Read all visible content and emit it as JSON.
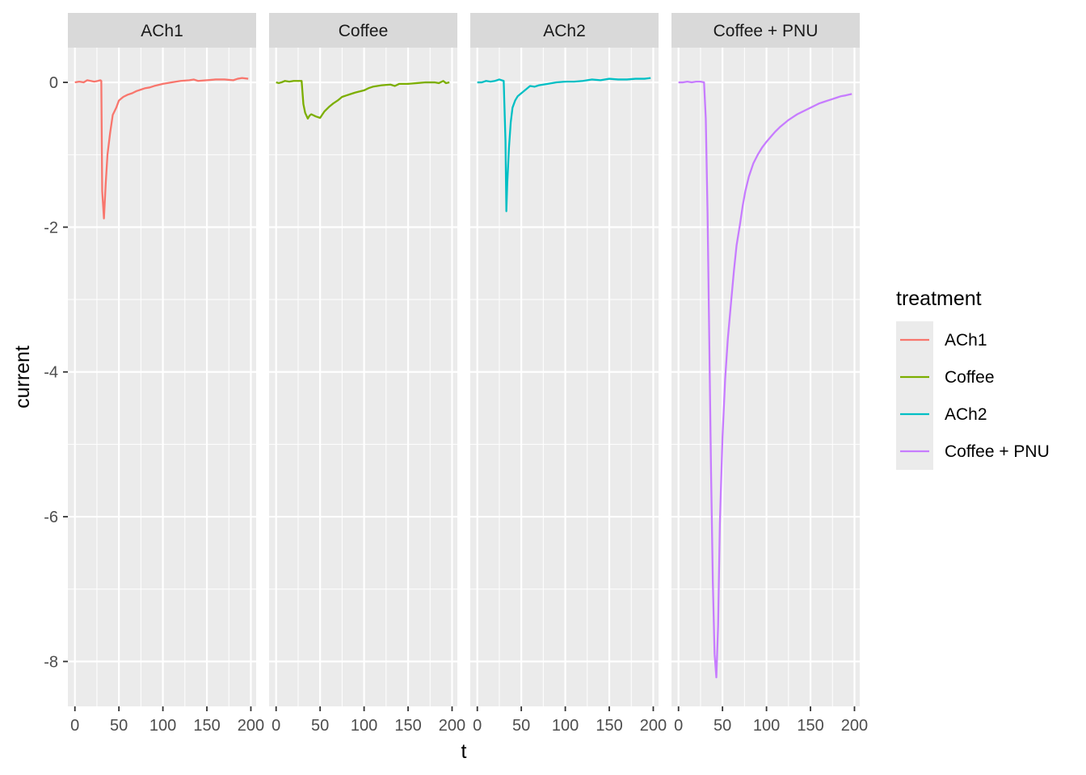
{
  "chart_data": {
    "type": "line",
    "facets": [
      "ACh1",
      "Coffee",
      "ACh2",
      "Coffee + PNU"
    ],
    "xlabel": "t",
    "ylabel": "current",
    "xlim": [
      -8,
      206
    ],
    "ylim": [
      -8.62,
      0.48
    ],
    "x_ticks": [
      0,
      50,
      100,
      150,
      200
    ],
    "x_tick_labels": [
      "0",
      "50",
      "100",
      "150",
      "200"
    ],
    "y_ticks": [
      0,
      -2,
      -4,
      -6,
      -8
    ],
    "y_tick_labels": [
      "0",
      "-2",
      "-4",
      "-6",
      "-8"
    ],
    "grid": true,
    "legend": {
      "title": "treatment",
      "position": "right"
    },
    "series": [
      {
        "name": "ACh1",
        "color": "#F8766D",
        "points": [
          [
            0,
            0
          ],
          [
            5,
            0.01
          ],
          [
            10,
            0
          ],
          [
            14,
            0.03
          ],
          [
            18,
            0.02
          ],
          [
            22,
            0.01
          ],
          [
            26,
            0.02
          ],
          [
            29,
            0.03
          ],
          [
            30,
            0.02
          ],
          [
            31,
            -1.5
          ],
          [
            33,
            -1.88
          ],
          [
            35,
            -1.4
          ],
          [
            37,
            -1.0
          ],
          [
            40,
            -0.7
          ],
          [
            43,
            -0.45
          ],
          [
            47,
            -0.35
          ],
          [
            50,
            -0.25
          ],
          [
            55,
            -0.2
          ],
          [
            60,
            -0.17
          ],
          [
            65,
            -0.15
          ],
          [
            70,
            -0.12
          ],
          [
            75,
            -0.1
          ],
          [
            80,
            -0.08
          ],
          [
            85,
            -0.07
          ],
          [
            90,
            -0.05
          ],
          [
            100,
            -0.02
          ],
          [
            110,
            0
          ],
          [
            120,
            0.02
          ],
          [
            130,
            0.03
          ],
          [
            135,
            0.04
          ],
          [
            140,
            0.02
          ],
          [
            150,
            0.03
          ],
          [
            160,
            0.04
          ],
          [
            170,
            0.04
          ],
          [
            180,
            0.03
          ],
          [
            185,
            0.05
          ],
          [
            190,
            0.06
          ],
          [
            197,
            0.05
          ]
        ]
      },
      {
        "name": "Coffee",
        "color": "#7CAE00",
        "points": [
          [
            0,
            0
          ],
          [
            3,
            -0.01
          ],
          [
            6,
            0
          ],
          [
            10,
            0.02
          ],
          [
            15,
            0.01
          ],
          [
            20,
            0.02
          ],
          [
            25,
            0.02
          ],
          [
            29,
            0.02
          ],
          [
            31,
            -0.3
          ],
          [
            33,
            -0.42
          ],
          [
            36,
            -0.5
          ],
          [
            38,
            -0.46
          ],
          [
            40,
            -0.44
          ],
          [
            45,
            -0.47
          ],
          [
            50,
            -0.49
          ],
          [
            55,
            -0.4
          ],
          [
            60,
            -0.34
          ],
          [
            65,
            -0.29
          ],
          [
            70,
            -0.25
          ],
          [
            75,
            -0.2
          ],
          [
            80,
            -0.18
          ],
          [
            85,
            -0.16
          ],
          [
            90,
            -0.14
          ],
          [
            100,
            -0.11
          ],
          [
            105,
            -0.08
          ],
          [
            110,
            -0.06
          ],
          [
            120,
            -0.04
          ],
          [
            130,
            -0.03
          ],
          [
            135,
            -0.05
          ],
          [
            140,
            -0.02
          ],
          [
            150,
            -0.02
          ],
          [
            160,
            -0.01
          ],
          [
            170,
            0
          ],
          [
            180,
            0
          ],
          [
            185,
            -0.01
          ],
          [
            190,
            0.02
          ],
          [
            193,
            -0.01
          ],
          [
            197,
            0
          ]
        ]
      },
      {
        "name": "ACh2",
        "color": "#00BFC4",
        "points": [
          [
            0,
            0
          ],
          [
            5,
            0
          ],
          [
            10,
            0.02
          ],
          [
            15,
            0.01
          ],
          [
            20,
            0.02
          ],
          [
            25,
            0.04
          ],
          [
            30,
            0.02
          ],
          [
            32,
            -0.8
          ],
          [
            33,
            -1.78
          ],
          [
            34,
            -1.4
          ],
          [
            36,
            -0.9
          ],
          [
            38,
            -0.55
          ],
          [
            40,
            -0.35
          ],
          [
            43,
            -0.25
          ],
          [
            46,
            -0.19
          ],
          [
            50,
            -0.15
          ],
          [
            55,
            -0.1
          ],
          [
            60,
            -0.05
          ],
          [
            65,
            -0.06
          ],
          [
            70,
            -0.04
          ],
          [
            80,
            -0.02
          ],
          [
            90,
            0
          ],
          [
            100,
            0.01
          ],
          [
            110,
            0.01
          ],
          [
            120,
            0.02
          ],
          [
            130,
            0.04
          ],
          [
            140,
            0.03
          ],
          [
            150,
            0.05
          ],
          [
            160,
            0.04
          ],
          [
            170,
            0.04
          ],
          [
            180,
            0.05
          ],
          [
            190,
            0.05
          ],
          [
            197,
            0.06
          ]
        ]
      },
      {
        "name": "Coffee + PNU",
        "color": "#C77CFF",
        "points": [
          [
            0,
            0
          ],
          [
            5,
            0
          ],
          [
            10,
            0.01
          ],
          [
            15,
            0
          ],
          [
            20,
            0.01
          ],
          [
            25,
            0.01
          ],
          [
            29,
            0
          ],
          [
            31,
            -0.5
          ],
          [
            33,
            -1.8
          ],
          [
            35,
            -3.6
          ],
          [
            37,
            -5.4
          ],
          [
            39,
            -6.9
          ],
          [
            41,
            -7.9
          ],
          [
            43,
            -8.22
          ],
          [
            45,
            -7.5
          ],
          [
            47,
            -6.1
          ],
          [
            50,
            -4.9
          ],
          [
            53,
            -4.1
          ],
          [
            56,
            -3.55
          ],
          [
            60,
            -3.0
          ],
          [
            63,
            -2.6
          ],
          [
            66,
            -2.25
          ],
          [
            70,
            -1.95
          ],
          [
            73,
            -1.7
          ],
          [
            76,
            -1.5
          ],
          [
            80,
            -1.3
          ],
          [
            85,
            -1.12
          ],
          [
            90,
            -1.0
          ],
          [
            95,
            -0.9
          ],
          [
            100,
            -0.82
          ],
          [
            105,
            -0.75
          ],
          [
            110,
            -0.68
          ],
          [
            115,
            -0.62
          ],
          [
            120,
            -0.57
          ],
          [
            125,
            -0.52
          ],
          [
            130,
            -0.48
          ],
          [
            135,
            -0.44
          ],
          [
            140,
            -0.41
          ],
          [
            145,
            -0.38
          ],
          [
            150,
            -0.35
          ],
          [
            155,
            -0.32
          ],
          [
            160,
            -0.29
          ],
          [
            165,
            -0.27
          ],
          [
            170,
            -0.25
          ],
          [
            175,
            -0.23
          ],
          [
            180,
            -0.21
          ],
          [
            185,
            -0.19
          ],
          [
            190,
            -0.18
          ],
          [
            197,
            -0.16
          ]
        ]
      }
    ]
  }
}
